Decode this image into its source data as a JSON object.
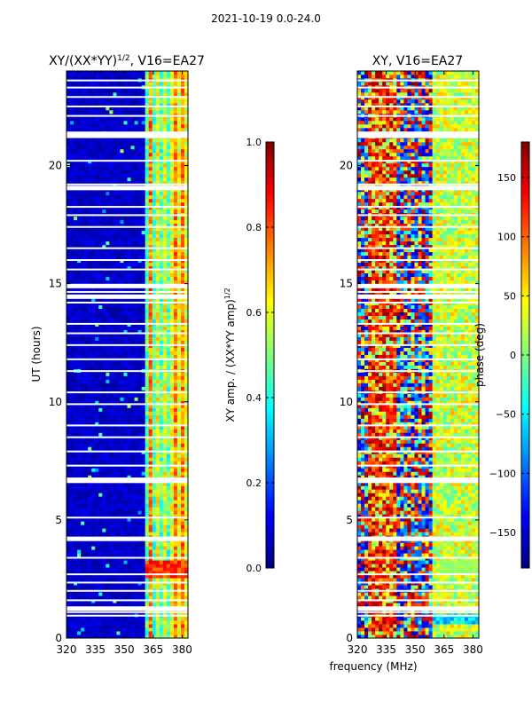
{
  "suptitle": "2021-10-19 0.0-24.0",
  "common_xlabel": "frequency (MHz)",
  "colors": {
    "background": "#00007f",
    "flag": "#ffffff",
    "frame": "#000000",
    "jet": [
      "#00007f",
      "#0000ff",
      "#007fff",
      "#00ffff",
      "#7fff7f",
      "#ffff00",
      "#ff7f00",
      "#ff0000",
      "#7f0000"
    ]
  },
  "chart_data": [
    {
      "type": "heatmap",
      "name": "normalized-amplitude",
      "title_parts": [
        "XY/(XX*YY)",
        "1/2",
        ", V16=EA27"
      ],
      "ylabel": "UT (hours)",
      "xlabel": "",
      "xlim": [
        320,
        383
      ],
      "ylim": [
        0,
        24
      ],
      "xticks": [
        320,
        335,
        350,
        365,
        380
      ],
      "yticks": [
        0,
        5,
        10,
        15,
        20
      ],
      "colorbar": {
        "label_parts": [
          "XY amp. / (XX*YY amp)",
          "1/2"
        ],
        "range": [
          0.0,
          1.0
        ],
        "ticks": [
          0.0,
          0.2,
          0.4,
          0.6,
          0.8,
          1.0
        ],
        "tick_labels": [
          "0.0",
          "0.2",
          "0.4",
          "0.6",
          "0.8",
          "1.0"
        ]
      },
      "active_band_mhz": [
        360,
        382
      ],
      "flagged_hours": [
        0.95,
        1.1,
        1.6,
        2.0,
        2.35,
        2.7,
        3.4,
        4.15,
        4.25,
        5.1,
        6.6,
        6.75,
        7.3,
        7.9,
        8.5,
        9.0,
        9.9,
        10.4,
        11.3,
        11.8,
        12.4,
        12.9,
        13.3,
        14.2,
        14.4,
        14.65,
        14.9,
        15.6,
        16.0,
        16.5,
        17.4,
        17.9,
        18.25,
        19.0,
        19.2,
        20.2,
        21.2,
        21.4,
        22.1,
        22.5,
        22.9,
        23.3,
        23.6
      ],
      "notes": "Amplitude near 0.0-0.1 (dark blue) below 360 MHz; 0.3-0.7 across 360-382 MHz; brighter 0.7-0.9 near 2.6-3.2 h."
    },
    {
      "type": "heatmap",
      "name": "phase",
      "title_parts": [
        "XY, V16=EA27"
      ],
      "ylabel": "",
      "xlabel": "",
      "xlim": [
        320,
        383
      ],
      "ylim": [
        0,
        24
      ],
      "xticks": [
        320,
        335,
        350,
        365,
        380
      ],
      "yticks": [
        0,
        5,
        10,
        15,
        20
      ],
      "colorbar": {
        "label_parts": [
          "phase (deg)"
        ],
        "range": [
          -180,
          180
        ],
        "ticks": [
          -150,
          -100,
          -50,
          0,
          50,
          100,
          150
        ],
        "tick_labels": [
          "−150",
          "−100",
          "−50",
          "0",
          "50",
          "100",
          "150"
        ]
      },
      "flagged_hours": [
        0.95,
        1.1,
        1.6,
        2.0,
        2.35,
        2.7,
        3.4,
        4.15,
        4.25,
        5.1,
        6.6,
        6.75,
        7.3,
        7.9,
        8.5,
        9.0,
        9.9,
        10.4,
        11.3,
        11.8,
        12.4,
        12.9,
        13.3,
        14.2,
        14.4,
        14.65,
        14.9,
        15.6,
        16.0,
        16.5,
        17.4,
        17.9,
        18.25,
        19.0,
        19.2,
        20.2,
        21.2,
        21.4,
        22.1,
        22.5,
        22.9,
        23.3,
        23.6
      ],
      "notes": "Phase noisy (-180..180 deg, mostly reds and blues) from 320-360 MHz; smoother cyan/green/yellow near 0 to +50 deg across 358-382 MHz."
    }
  ]
}
